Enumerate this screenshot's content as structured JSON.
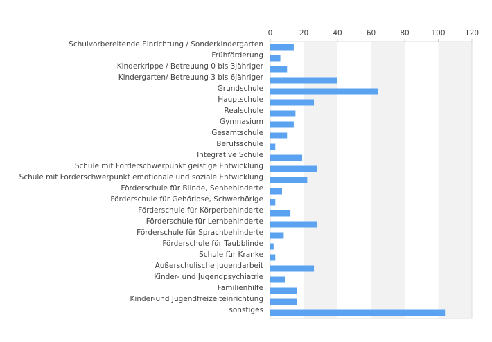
{
  "chart_data": {
    "type": "bar",
    "orientation": "horizontal",
    "categories": [
      "Schulvorbereitende Einrichtung / Sonderkindergarten",
      "Frühförderung",
      "Kinderkrippe / Betreuung 0 bis 3jähriger",
      "Kindergarten/ Betreuung 3 bis 6jähriger",
      "Grundschule",
      "Hauptschule",
      "Realschule",
      "Gymnasium",
      "Gesamtschule",
      "Berufsschule",
      "Integrative Schule",
      "Schule mit Förderschwerpunkt geistige Entwicklung",
      "Schule mit Förderschwerpunkt emotionale und soziale Entwicklung",
      "Förderschule für Blinde, Sehbehinderte",
      "Förderschule für Gehörlose, Schwerhörige",
      "Förderschule für Körperbehinderte",
      "Förderschule für Lernbehinderte",
      "Förderschule für Sprachbehinderte",
      "Förderschule für Taubblinde",
      "Schule für Kranke",
      "Außerschulische Jugendarbeit",
      "Kinder- und Jugendpsychiatrie",
      "Familienhilfe",
      "Kinder-und Jugendfreizeiteinrichtung",
      "sonstiges"
    ],
    "values": [
      14,
      6,
      10,
      40,
      64,
      26,
      15,
      14,
      10,
      3,
      19,
      28,
      22,
      7,
      3,
      12,
      28,
      8,
      2,
      3,
      26,
      9,
      16,
      16,
      104
    ],
    "xlim": [
      0,
      120
    ],
    "xticks": [
      "0",
      "20",
      "40",
      "60",
      "80",
      "100",
      "120"
    ],
    "x_axis_position": "top",
    "grid": "vertical bands",
    "bar_color": "#5ba3f0",
    "band_color": "#f2f2f2",
    "axis_color": "#dddddd"
  }
}
